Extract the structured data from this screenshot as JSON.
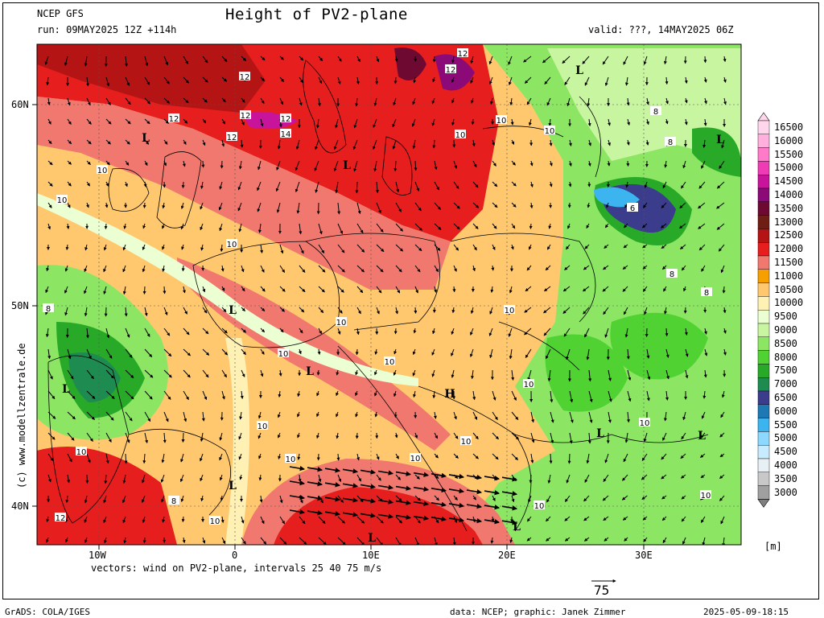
{
  "header": {
    "model": "NCEP GFS",
    "run": "run: 09MAY2025 12Z +114h",
    "title": "Height of PV2-plane",
    "valid": "valid: ???, 14MAY2025 06Z"
  },
  "side_credit": "(c) www.modellzentrale.de",
  "axes": {
    "lat_labels": [
      "60N",
      "50N",
      "40N"
    ],
    "lon_labels": [
      "10W",
      "0",
      "10E",
      "20E",
      "30E"
    ]
  },
  "vectors_caption": "vectors: wind on PV2-plane, intervals 25 40 75 m/s",
  "reference_vector": "75",
  "units": "[m]",
  "footer": {
    "left": "GrADS: COLA/IGES",
    "center": "data: NCEP; graphic: Janek Zimmer",
    "right": "2025-05-09-18:15"
  },
  "legend": {
    "levels": [
      "16500",
      "16000",
      "15500",
      "15000",
      "14500",
      "14000",
      "13500",
      "13000",
      "12500",
      "12000",
      "11500",
      "11000",
      "10500",
      "10000",
      "9500",
      "9000",
      "8500",
      "8000",
      "7500",
      "7000",
      "6500",
      "6000",
      "5500",
      "5000",
      "4500",
      "4000",
      "3500",
      "3000"
    ],
    "colors": [
      "#ffd6ec",
      "#ffb0dc",
      "#ff7ac8",
      "#f03cb4",
      "#c8149b",
      "#8c0a78",
      "#6e0a32",
      "#6e1e14",
      "#b41414",
      "#e61e1e",
      "#f0786e",
      "#f5a000",
      "#ffc86e",
      "#fff0b4",
      "#ebffd2",
      "#c8f5a0",
      "#8ce664",
      "#50d232",
      "#28aa28",
      "#1e8c50",
      "#3c3c8c",
      "#1e78b4",
      "#3cb4f0",
      "#8cd8ff",
      "#c8ecff",
      "#e6f0f5",
      "#c8c8c8",
      "#a0a0a0"
    ]
  },
  "map_labels": {
    "contours": [
      "12",
      "12",
      "12",
      "12",
      "14",
      "12",
      "12",
      "12",
      "10",
      "10",
      "10",
      "10",
      "10",
      "10",
      "10",
      "10",
      "10",
      "10",
      "10",
      "10",
      "10",
      "10",
      "10",
      "10",
      "10",
      "10",
      "10",
      "10",
      "12",
      "8",
      "8",
      "8",
      "8",
      "8",
      "8",
      "6"
    ],
    "lows": [
      "L",
      "L",
      "L",
      "L",
      "L",
      "L",
      "L",
      "L",
      "L",
      "L",
      "L",
      "L"
    ],
    "highs": [
      "H"
    ]
  }
}
